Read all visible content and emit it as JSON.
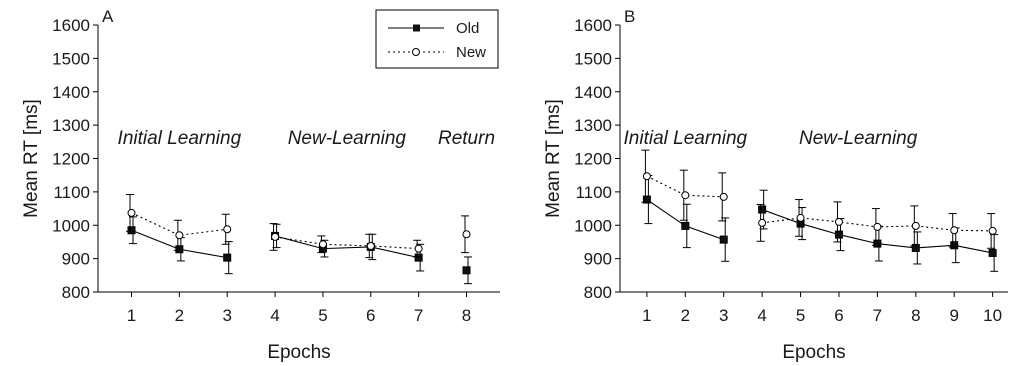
{
  "chart_data": [
    {
      "type": "line",
      "panel_label": "A",
      "xlabel": "Epochs",
      "ylabel": "Mean RT [ms]",
      "ylim": [
        800,
        1600
      ],
      "yticks": [
        800,
        900,
        1000,
        1100,
        1200,
        1300,
        1400,
        1500,
        1600
      ],
      "xlim": [
        0.3,
        8.7
      ],
      "x": [
        1,
        2,
        3,
        4,
        5,
        6,
        7,
        8
      ],
      "phase_labels": [
        {
          "text": "Initial Learning",
          "x": 2,
          "y": 1265
        },
        {
          "text": "New-Learning",
          "x": 5.5,
          "y": 1265
        },
        {
          "text": "Return",
          "x": 8,
          "y": 1265
        }
      ],
      "segments": [
        [
          0,
          2
        ],
        [
          3,
          6
        ],
        [
          7,
          7
        ]
      ],
      "legend": {
        "position": "top-right"
      },
      "series": [
        {
          "name": "Old",
          "marker": "square-filled",
          "line": "solid",
          "values": [
            985,
            928,
            903,
            968,
            930,
            935,
            903,
            865
          ],
          "errors": [
            40,
            35,
            48,
            35,
            25,
            38,
            40,
            40
          ]
        },
        {
          "name": "New",
          "marker": "circle-open",
          "line": "dotted",
          "values": [
            1037,
            970,
            988,
            965,
            943,
            938,
            930,
            973
          ],
          "errors": [
            55,
            45,
            45,
            40,
            25,
            35,
            25,
            55
          ]
        }
      ]
    },
    {
      "type": "line",
      "panel_label": "B",
      "xlabel": "Epochs",
      "ylabel": "Mean RT [ms]",
      "ylim": [
        800,
        1600
      ],
      "yticks": [
        800,
        900,
        1000,
        1100,
        1200,
        1300,
        1400,
        1500,
        1600
      ],
      "xlim": [
        0.3,
        10.4
      ],
      "x": [
        1,
        2,
        3,
        4,
        5,
        6,
        7,
        8,
        9,
        10
      ],
      "phase_labels": [
        {
          "text": "Initial Learning",
          "x": 2,
          "y": 1265
        },
        {
          "text": "New-Learning",
          "x": 6.5,
          "y": 1265
        }
      ],
      "segments": [
        [
          0,
          2
        ],
        [
          3,
          9
        ]
      ],
      "series": [
        {
          "name": "Old",
          "marker": "square-filled",
          "line": "solid",
          "values": [
            1077,
            998,
            957,
            1047,
            1005,
            972,
            945,
            932,
            940,
            917
          ],
          "errors": [
            72,
            65,
            65,
            58,
            48,
            48,
            52,
            48,
            52,
            55
          ]
        },
        {
          "name": "New",
          "marker": "circle-open",
          "line": "dotted",
          "values": [
            1147,
            1090,
            1085,
            1007,
            1022,
            1010,
            995,
            998,
            985,
            983
          ],
          "errors": [
            78,
            75,
            72,
            55,
            55,
            60,
            55,
            60,
            50,
            52
          ]
        }
      ]
    }
  ]
}
